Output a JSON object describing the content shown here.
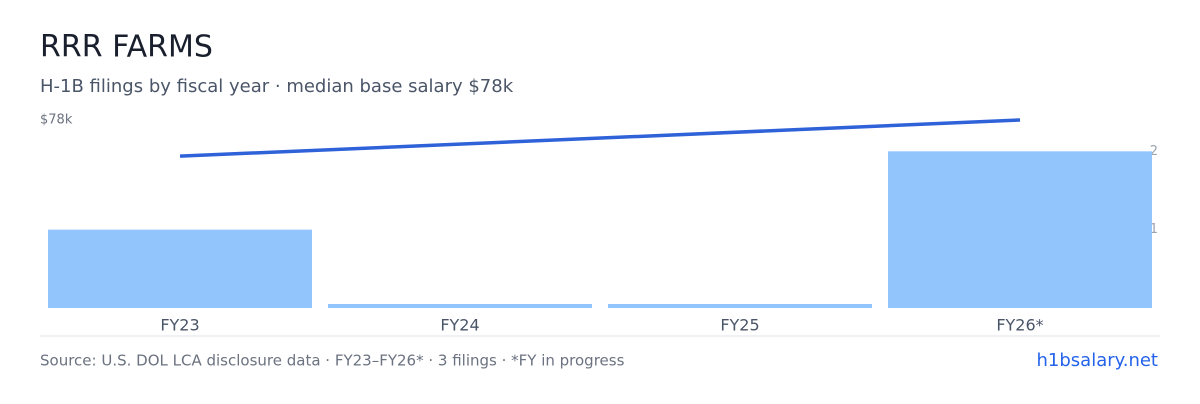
{
  "chart_data": {
    "type": "bar",
    "title": "RRR FARMS",
    "subtitle": "H-1B filings by fiscal year · median base salary $78k",
    "categories": [
      "FY23",
      "FY24",
      "FY25",
      "FY26*"
    ],
    "values": [
      1,
      0,
      0,
      2
    ],
    "color": "#93c5fd",
    "y2lim": [
      0,
      2.4
    ],
    "y2ticks": [
      1,
      2
    ],
    "line": {
      "categories": [
        "FY23",
        "FY26*"
      ],
      "values": [
        63000,
        78000
      ],
      "color": "#2f62d8"
    },
    "ylim": [
      0,
      78000
    ],
    "yticks": [
      {
        "value": 78000,
        "label": "$78k"
      }
    ],
    "source": "Source: U.S. DOL LCA disclosure data · FY23–FY26* · 3 filings · *FY in progress",
    "link": "h1bsalary.net"
  }
}
